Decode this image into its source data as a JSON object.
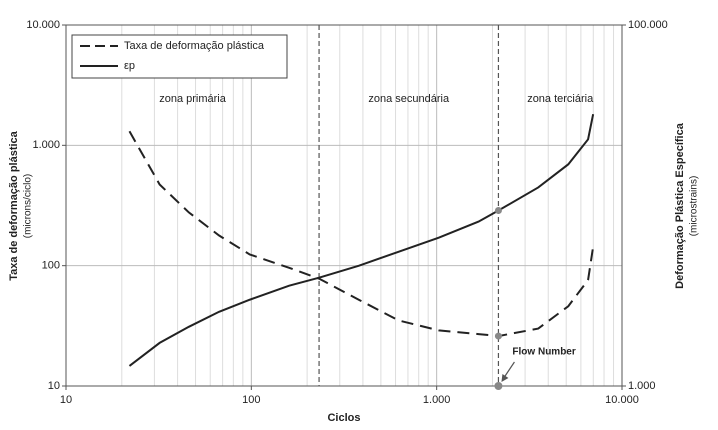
{
  "chart_data": {
    "type": "line",
    "xlabel": "Ciclos",
    "ylabel": "Taxa de deformação plástica",
    "ylabel_sub": "(microns/ciclo)",
    "y2label": "Deformação Plástica Específica",
    "y2label_sub": "(microstrains)",
    "log_x": true,
    "log_y": true,
    "log_y2": true,
    "xlim": [
      10,
      10000
    ],
    "xticks": [
      10,
      100,
      {
        "value": 1000,
        "label": "1.000"
      },
      {
        "value": 10000,
        "label": "10.000"
      }
    ],
    "ylim": [
      10,
      10000
    ],
    "yticks": [
      10,
      100,
      {
        "value": 1000,
        "label": "1.000"
      },
      {
        "value": 10000,
        "label": "10.000"
      }
    ],
    "y2lim": [
      1000,
      100000
    ],
    "y2ticks": [
      {
        "value": 1000,
        "label": "1.000"
      },
      {
        "value": 100000,
        "label": "100.000"
      }
    ],
    "grid": true,
    "legend": "upper left",
    "x": [
      22,
      32,
      46,
      67,
      98,
      160,
      232,
      381,
      625,
      1026,
      1683,
      2154,
      3532,
      5129,
      6561,
      6987
    ],
    "series": [
      {
        "name": "Taxa de deformação plástica",
        "color": "#222222",
        "style": "dashed",
        "values": [
          1308,
          473,
          277,
          178,
          124,
          96,
          78,
          52,
          35,
          29,
          27,
          26,
          30,
          46,
          76,
          144
        ]
      },
      {
        "name": "εp",
        "color": "#222222",
        "style": "solid",
        "axis": "y2",
        "values": [
          1291,
          1733,
          2128,
          2578,
          3005,
          3594,
          3981,
          4642,
          5550,
          6634,
          8147,
          9380,
          12589,
          16904,
          23263,
          32064
        ]
      }
    ],
    "vlines": [
      232,
      2154
    ],
    "zones": [
      "zona primária",
      "zona secundária",
      "zona terciária"
    ],
    "annotation": {
      "text": "Flow Number",
      "x": 2154,
      "y": 10
    }
  }
}
